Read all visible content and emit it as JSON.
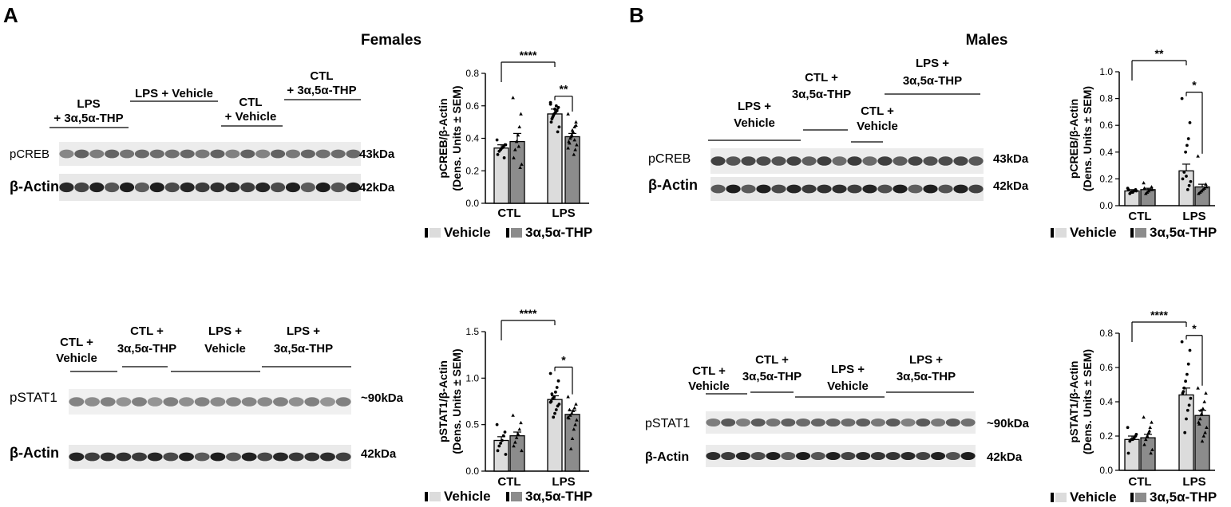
{
  "panels": [
    {
      "letter": "A",
      "title": "Females",
      "blots": [
        {
          "groups": [
            {
              "lines": [
                "LPS",
                "+ 3α,5α-THP"
              ]
            },
            {
              "lines": [
                "LPS + Vehicle"
              ]
            },
            {
              "lines": [
                "CTL",
                "+ Vehicle"
              ]
            },
            {
              "lines": [
                "CTL",
                "+ 3α,5α-THP"
              ]
            }
          ],
          "rows": [
            {
              "label": "pCREB",
              "kda": "43kDa"
            },
            {
              "label": "β-Actin",
              "kda": "42kDa"
            }
          ]
        },
        {
          "groups": [
            {
              "lines": [
                "CTL +",
                "Vehicle"
              ]
            },
            {
              "lines": [
                "CTL +",
                "3α,5α-THP"
              ]
            },
            {
              "lines": [
                "LPS +",
                "Vehicle"
              ]
            },
            {
              "lines": [
                "LPS +",
                "3α,5α-THP"
              ]
            }
          ],
          "rows": [
            {
              "label": "pSTAT1",
              "kda": "~90kDa"
            },
            {
              "label": "β-Actin",
              "kda": "42kDa"
            }
          ]
        }
      ]
    },
    {
      "letter": "B",
      "title": "Males",
      "blots": [
        {
          "groups": [
            {
              "lines": [
                "LPS +",
                "Vehicle"
              ]
            },
            {
              "lines": [
                "CTL +",
                "3α,5α-THP"
              ]
            },
            {
              "lines": [
                "CTL +",
                "Vehicle"
              ]
            },
            {
              "lines": [
                "LPS +",
                "3α,5α-THP"
              ]
            }
          ],
          "rows": [
            {
              "label": "pCREB",
              "kda": "43kDa"
            },
            {
              "label": "β-Actin",
              "kda": "42kDa"
            }
          ]
        },
        {
          "groups": [
            {
              "lines": [
                "CTL +",
                "Vehicle"
              ]
            },
            {
              "lines": [
                "CTL +",
                "3α,5α-THP"
              ]
            },
            {
              "lines": [
                "LPS +",
                "Vehicle"
              ]
            },
            {
              "lines": [
                "LPS +",
                "3α,5α-THP"
              ]
            }
          ],
          "rows": [
            {
              "label": "pSTAT1",
              "kda": "~90kDa"
            },
            {
              "label": "β-Actin",
              "kda": "42kDa"
            }
          ]
        }
      ]
    }
  ],
  "legend": {
    "items": [
      {
        "label": "Vehicle",
        "color": "#dcdcdc"
      },
      {
        "label": "3α,5α-THP",
        "color": "#8c8c8c"
      }
    ]
  },
  "colors": {
    "vehicle": "#dcdcdc",
    "thp": "#8c8c8c",
    "ink": "#000000",
    "band": "#1c1c1c"
  },
  "chart_data": [
    {
      "type": "bar",
      "ylabel_lines": [
        "pCREB/β-Actin",
        "(Dens. Units ± SEM)"
      ],
      "categories": [
        "CTL",
        "LPS"
      ],
      "ylim": [
        0,
        0.8
      ],
      "yticks": [
        "0.0",
        "0.2",
        "0.4",
        "0.6",
        "0.8"
      ],
      "series": [
        {
          "name": "Vehicle",
          "values": [
            0.34,
            0.55
          ],
          "sem": [
            0.02,
            0.03
          ],
          "points": [
            [
              0.39,
              0.36,
              0.35,
              0.34,
              0.33,
              0.32,
              0.3,
              0.36,
              0.28
            ],
            [
              0.62,
              0.59,
              0.57,
              0.56,
              0.55,
              0.53,
              0.5,
              0.47,
              0.44,
              0.6,
              0.58,
              0.54,
              0.52,
              0.61
            ]
          ]
        },
        {
          "name": "3α,5α-THP",
          "values": [
            0.38,
            0.41
          ],
          "sem": [
            0.05,
            0.02
          ],
          "points": [
            [
              0.65,
              0.55,
              0.47,
              0.42,
              0.38,
              0.33,
              0.28,
              0.24,
              0.22,
              0.35
            ],
            [
              0.55,
              0.5,
              0.47,
              0.44,
              0.42,
              0.4,
              0.38,
              0.36,
              0.33,
              0.3,
              0.45,
              0.41,
              0.37,
              0.34,
              0.48,
              0.39
            ]
          ]
        }
      ],
      "significance": [
        {
          "label": "****",
          "from": [
            0,
            0
          ],
          "to": [
            1,
            0
          ]
        },
        {
          "label": "**",
          "from": [
            1,
            0
          ],
          "to": [
            1,
            1
          ]
        }
      ]
    },
    {
      "type": "bar",
      "ylabel_lines": [
        "pSTAT1/β-Actin",
        "(Dens. Units ± SEM)"
      ],
      "categories": [
        "CTL",
        "LPS"
      ],
      "ylim": [
        0,
        1.5
      ],
      "yticks": [
        "0.0",
        "0.5",
        "1.0",
        "1.5"
      ],
      "series": [
        {
          "name": "Vehicle",
          "values": [
            0.33,
            0.77
          ],
          "sem": [
            0.04,
            0.04
          ],
          "points": [
            [
              0.5,
              0.42,
              0.38,
              0.33,
              0.3,
              0.27,
              0.22,
              0.18
            ],
            [
              1.05,
              0.97,
              0.9,
              0.85,
              0.8,
              0.78,
              0.75,
              0.72,
              0.7,
              0.66,
              0.62,
              0.58,
              0.83,
              0.74
            ]
          ]
        },
        {
          "name": "3α,5α-THP",
          "values": [
            0.38,
            0.61
          ],
          "sem": [
            0.04,
            0.04
          ],
          "points": [
            [
              0.6,
              0.52,
              0.45,
              0.4,
              0.36,
              0.31,
              0.27,
              0.22
            ],
            [
              0.8,
              0.72,
              0.68,
              0.65,
              0.62,
              0.6,
              0.57,
              0.55,
              0.5,
              0.45,
              0.35,
              0.24,
              0.66,
              0.58
            ]
          ]
        }
      ],
      "significance": [
        {
          "label": "****",
          "from": [
            0,
            0
          ],
          "to": [
            1,
            0
          ]
        },
        {
          "label": "*",
          "from": [
            1,
            0
          ],
          "to": [
            1,
            1
          ]
        }
      ]
    },
    {
      "type": "bar",
      "ylabel_lines": [
        "pCREB/β-Actin",
        "(Dens. Units ± SEM)"
      ],
      "categories": [
        "CTL",
        "LPS"
      ],
      "ylim": [
        0,
        1.0
      ],
      "yticks": [
        "0.0",
        "0.2",
        "0.4",
        "0.6",
        "0.8",
        "1.0"
      ],
      "series": [
        {
          "name": "Vehicle",
          "values": [
            0.11,
            0.26
          ],
          "sem": [
            0.01,
            0.05
          ],
          "points": [
            [
              0.13,
              0.12,
              0.11,
              0.1,
              0.1,
              0.09,
              0.12,
              0.11
            ],
            [
              0.8,
              0.62,
              0.5,
              0.45,
              0.4,
              0.25,
              0.2,
              0.18,
              0.15,
              0.12,
              0.22
            ]
          ]
        },
        {
          "name": "3α,5α-THP",
          "values": [
            0.12,
            0.14
          ],
          "sem": [
            0.01,
            0.02
          ],
          "points": [
            [
              0.17,
              0.14,
              0.12,
              0.11,
              0.1,
              0.09,
              0.13,
              0.12
            ],
            [
              0.37,
              0.16,
              0.13,
              0.12,
              0.11,
              0.1,
              0.09,
              0.14
            ]
          ]
        }
      ],
      "significance": [
        {
          "label": "**",
          "from": [
            0,
            0
          ],
          "to": [
            1,
            0
          ]
        },
        {
          "label": "*",
          "from": [
            1,
            0
          ],
          "to": [
            1,
            1
          ]
        }
      ]
    },
    {
      "type": "bar",
      "ylabel_lines": [
        "pSTAT1/β-Actin",
        "(Dens. Units ± SEM)"
      ],
      "categories": [
        "CTL",
        "LPS"
      ],
      "ylim": [
        0,
        0.8
      ],
      "yticks": [
        "0.0",
        "0.2",
        "0.4",
        "0.6",
        "0.8"
      ],
      "series": [
        {
          "name": "Vehicle",
          "values": [
            0.18,
            0.44
          ],
          "sem": [
            0.02,
            0.04
          ],
          "points": [
            [
              0.25,
              0.2,
              0.19,
              0.18,
              0.18,
              0.17,
              0.1,
              0.21
            ],
            [
              0.75,
              0.7,
              0.62,
              0.56,
              0.52,
              0.48,
              0.45,
              0.42,
              0.38,
              0.35,
              0.3,
              0.22,
              0.46
            ]
          ]
        },
        {
          "name": "3α,5α-THP",
          "values": [
            0.19,
            0.32
          ],
          "sem": [
            0.02,
            0.03
          ],
          "points": [
            [
              0.31,
              0.28,
              0.25,
              0.22,
              0.2,
              0.18,
              0.15,
              0.12,
              0.1,
              0.23
            ],
            [
              0.48,
              0.45,
              0.4,
              0.36,
              0.33,
              0.3,
              0.28,
              0.25,
              0.22,
              0.2,
              0.17,
              0.35,
              0.27
            ]
          ]
        }
      ],
      "significance": [
        {
          "label": "****",
          "from": [
            0,
            0
          ],
          "to": [
            1,
            0
          ]
        },
        {
          "label": "*",
          "from": [
            1,
            0
          ],
          "to": [
            1,
            1
          ]
        }
      ]
    }
  ]
}
